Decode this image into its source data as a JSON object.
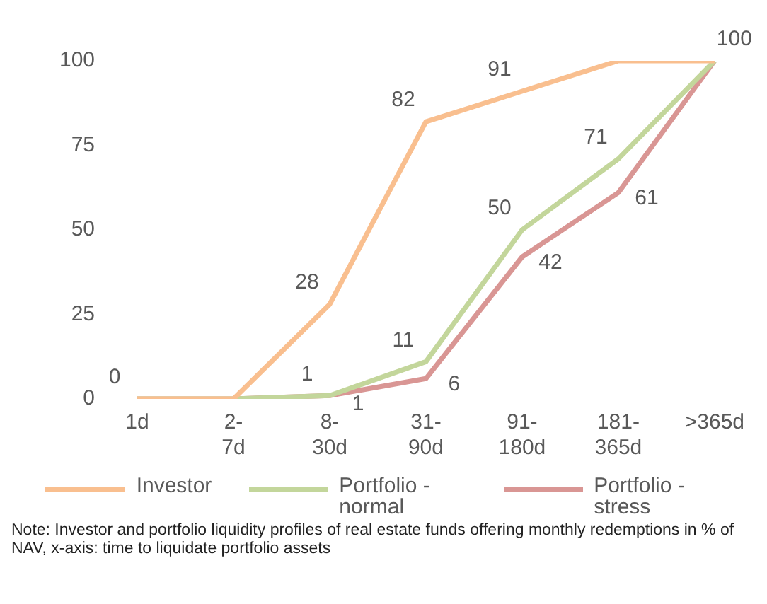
{
  "chart_data": {
    "type": "line",
    "categories": [
      "1d",
      "2-7d",
      "8-30d",
      "31-90d",
      "91-180d",
      "181-365d",
      ">365d"
    ],
    "series": [
      {
        "name": "Investor",
        "color": "#f9bf8f",
        "values": [
          0,
          0,
          28,
          82,
          91,
          100,
          100
        ],
        "value_labels": [
          "0",
          null,
          "28",
          "82",
          "91",
          null,
          "100"
        ]
      },
      {
        "name": "Portfolio - normal",
        "color": "#c3d69b",
        "values": [
          0,
          0,
          1,
          11,
          50,
          71,
          100
        ],
        "value_labels": [
          null,
          null,
          "1",
          "11",
          "50",
          "71",
          null
        ]
      },
      {
        "name": "Portfolio - stress",
        "color": "#d99694",
        "values": [
          0,
          0,
          1,
          6,
          42,
          61,
          100
        ],
        "value_labels": [
          null,
          null,
          "1",
          "6",
          "42",
          "61",
          null
        ]
      }
    ],
    "ylim": [
      0,
      100
    ],
    "yticks": [
      0,
      25,
      50,
      75,
      100
    ],
    "grid": false,
    "legend": "bottom",
    "marker": "none",
    "line_style": "solid",
    "annotations": [
      "Note: Investor and portfolio liquidity profiles of real estate funds offering monthly redemptions in % of NAV, x-axis: time to liquidate portfolio assets"
    ]
  }
}
